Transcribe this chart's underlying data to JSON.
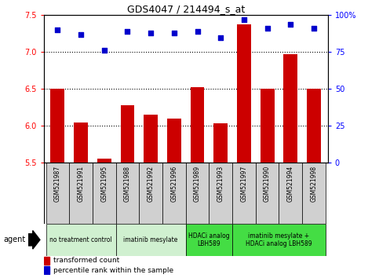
{
  "title": "GDS4047 / 214494_s_at",
  "samples": [
    "GSM521987",
    "GSM521991",
    "GSM521995",
    "GSM521988",
    "GSM521992",
    "GSM521996",
    "GSM521989",
    "GSM521993",
    "GSM521997",
    "GSM521990",
    "GSM521994",
    "GSM521998"
  ],
  "transformed_count": [
    6.5,
    6.04,
    5.55,
    6.28,
    6.15,
    6.1,
    6.52,
    6.03,
    7.38,
    6.5,
    6.97,
    6.5
  ],
  "percentile_rank": [
    90,
    87,
    76,
    89,
    88,
    88,
    89,
    85,
    97,
    91,
    94,
    91
  ],
  "ylim_left": [
    5.5,
    7.5
  ],
  "ylim_right": [
    0,
    100
  ],
  "yticks_left": [
    5.5,
    6.0,
    6.5,
    7.0,
    7.5
  ],
  "yticks_right": [
    0,
    25,
    50,
    75,
    100
  ],
  "grid_lines": [
    6.0,
    6.5,
    7.0
  ],
  "groups": [
    {
      "label": "no treatment control",
      "start": 0,
      "end": 3,
      "color": "#d0f0d0"
    },
    {
      "label": "imatinib mesylate",
      "start": 3,
      "end": 6,
      "color": "#d0f0d0"
    },
    {
      "label": "HDACi analog\nLBH589",
      "start": 6,
      "end": 8,
      "color": "#44dd44"
    },
    {
      "label": "imatinib mesylate +\nHDACi analog LBH589",
      "start": 8,
      "end": 12,
      "color": "#44dd44"
    }
  ],
  "bar_color": "#cc0000",
  "dot_color": "#0000cc",
  "plot_bg": "#ffffff",
  "sample_row_bg": "#d0d0d0",
  "agent_label": "agent",
  "legend_bar_label": "transformed count",
  "legend_dot_label": "percentile rank within the sample",
  "fig_width": 4.83,
  "fig_height": 3.54,
  "dpi": 100
}
